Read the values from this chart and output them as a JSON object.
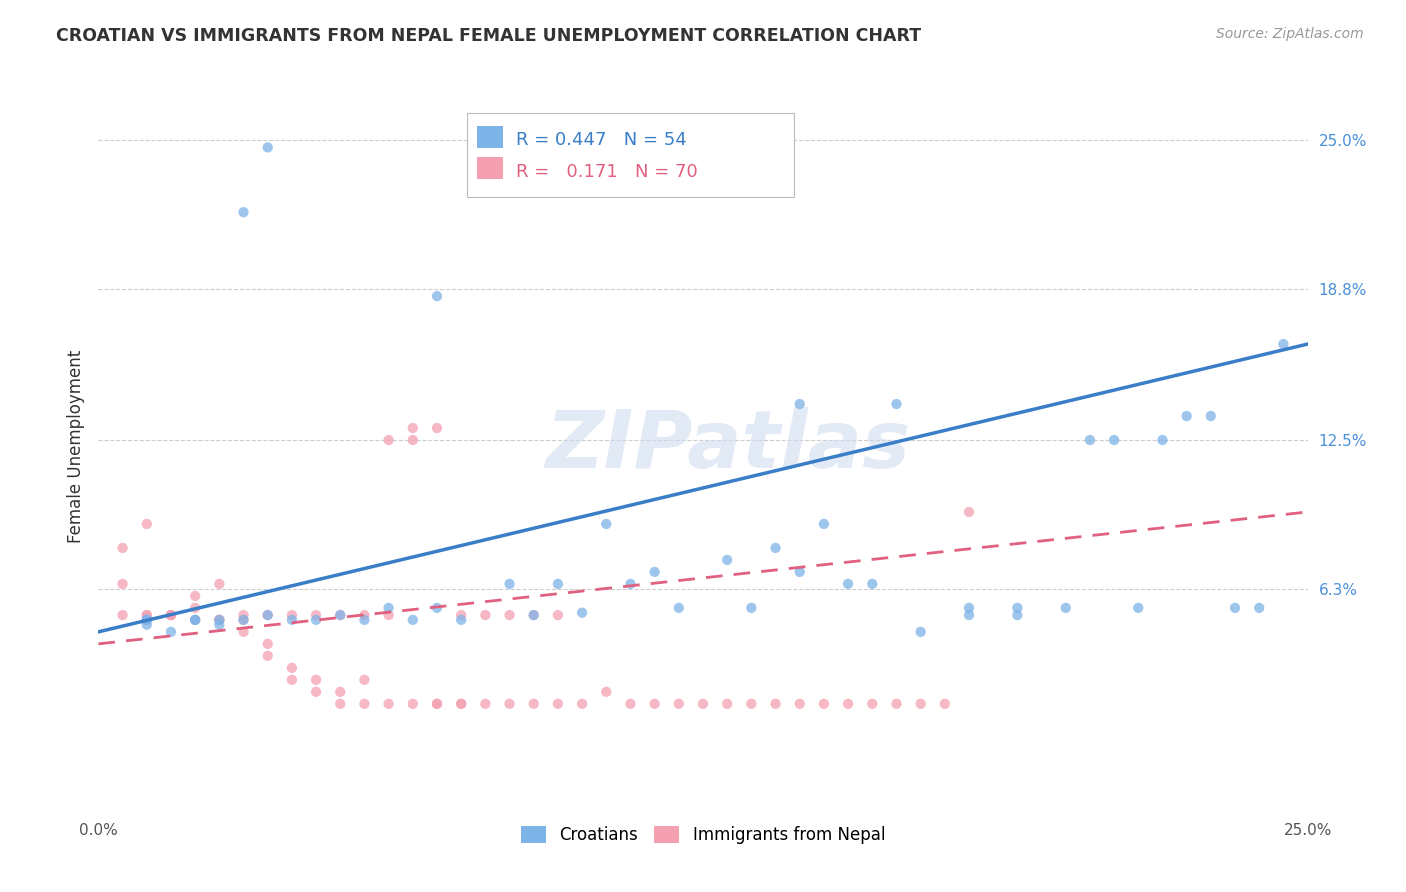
{
  "title": "CROATIAN VS IMMIGRANTS FROM NEPAL FEMALE UNEMPLOYMENT CORRELATION CHART",
  "source": "Source: ZipAtlas.com",
  "ylabel": "Female Unemployment",
  "xlim": [
    0.0,
    0.25
  ],
  "ylim": [
    -0.03,
    0.275
  ],
  "x_ticks": [
    0.0,
    0.25
  ],
  "x_tick_labels": [
    "0.0%",
    "25.0%"
  ],
  "y_tick_labels_right": [
    "25.0%",
    "18.8%",
    "12.5%",
    "6.3%"
  ],
  "y_tick_values_right": [
    0.25,
    0.188,
    0.125,
    0.063
  ],
  "legend_label1": "Croatians",
  "legend_label2": "Immigrants from Nepal",
  "r1": "0.447",
  "n1": "54",
  "r2": "0.171",
  "n2": "70",
  "color1": "#7EB3E8",
  "color2": "#F4A0B0",
  "trendline1_color": "#3A7EC8",
  "trendline2_color": "#E06080",
  "watermark": "ZIPatlas",
  "scatter1_x": [
    0.035,
    0.07,
    0.03,
    0.035,
    0.025,
    0.01,
    0.015,
    0.01,
    0.02,
    0.01,
    0.02,
    0.01,
    0.025,
    0.03,
    0.04,
    0.045,
    0.05,
    0.055,
    0.06,
    0.065,
    0.07,
    0.075,
    0.085,
    0.09,
    0.095,
    0.1,
    0.105,
    0.11,
    0.115,
    0.12,
    0.13,
    0.135,
    0.14,
    0.145,
    0.15,
    0.155,
    0.16,
    0.17,
    0.18,
    0.19,
    0.2,
    0.205,
    0.21,
    0.215,
    0.22,
    0.225,
    0.23,
    0.235,
    0.24,
    0.245,
    0.18,
    0.19,
    0.145,
    0.165
  ],
  "scatter1_y": [
    0.247,
    0.185,
    0.22,
    0.052,
    0.048,
    0.05,
    0.045,
    0.048,
    0.05,
    0.05,
    0.05,
    0.05,
    0.05,
    0.05,
    0.05,
    0.05,
    0.052,
    0.05,
    0.055,
    0.05,
    0.055,
    0.05,
    0.065,
    0.052,
    0.065,
    0.053,
    0.09,
    0.065,
    0.07,
    0.055,
    0.075,
    0.055,
    0.08,
    0.07,
    0.09,
    0.065,
    0.065,
    0.045,
    0.055,
    0.055,
    0.055,
    0.125,
    0.125,
    0.055,
    0.125,
    0.135,
    0.135,
    0.055,
    0.055,
    0.165,
    0.052,
    0.052,
    0.14,
    0.14
  ],
  "scatter2_x": [
    0.005,
    0.005,
    0.01,
    0.01,
    0.015,
    0.015,
    0.02,
    0.02,
    0.025,
    0.025,
    0.03,
    0.03,
    0.035,
    0.035,
    0.04,
    0.04,
    0.045,
    0.045,
    0.05,
    0.05,
    0.055,
    0.055,
    0.06,
    0.06,
    0.065,
    0.065,
    0.07,
    0.07,
    0.075,
    0.075,
    0.08,
    0.085,
    0.09,
    0.095,
    0.1,
    0.105,
    0.11,
    0.115,
    0.12,
    0.125,
    0.13,
    0.135,
    0.14,
    0.145,
    0.15,
    0.155,
    0.16,
    0.165,
    0.17,
    0.175,
    0.005,
    0.01,
    0.015,
    0.02,
    0.025,
    0.03,
    0.035,
    0.04,
    0.045,
    0.05,
    0.055,
    0.06,
    0.065,
    0.07,
    0.075,
    0.08,
    0.085,
    0.09,
    0.095,
    0.18
  ],
  "scatter2_y": [
    0.052,
    0.065,
    0.052,
    0.052,
    0.052,
    0.052,
    0.05,
    0.055,
    0.05,
    0.05,
    0.05,
    0.045,
    0.04,
    0.035,
    0.03,
    0.025,
    0.025,
    0.02,
    0.02,
    0.015,
    0.025,
    0.015,
    0.015,
    0.125,
    0.125,
    0.015,
    0.015,
    0.015,
    0.015,
    0.015,
    0.015,
    0.015,
    0.015,
    0.015,
    0.015,
    0.02,
    0.015,
    0.015,
    0.015,
    0.015,
    0.015,
    0.015,
    0.015,
    0.015,
    0.015,
    0.015,
    0.015,
    0.015,
    0.015,
    0.015,
    0.08,
    0.09,
    0.052,
    0.06,
    0.065,
    0.052,
    0.052,
    0.052,
    0.052,
    0.052,
    0.052,
    0.052,
    0.13,
    0.13,
    0.052,
    0.052,
    0.052,
    0.052,
    0.052,
    0.095
  ]
}
